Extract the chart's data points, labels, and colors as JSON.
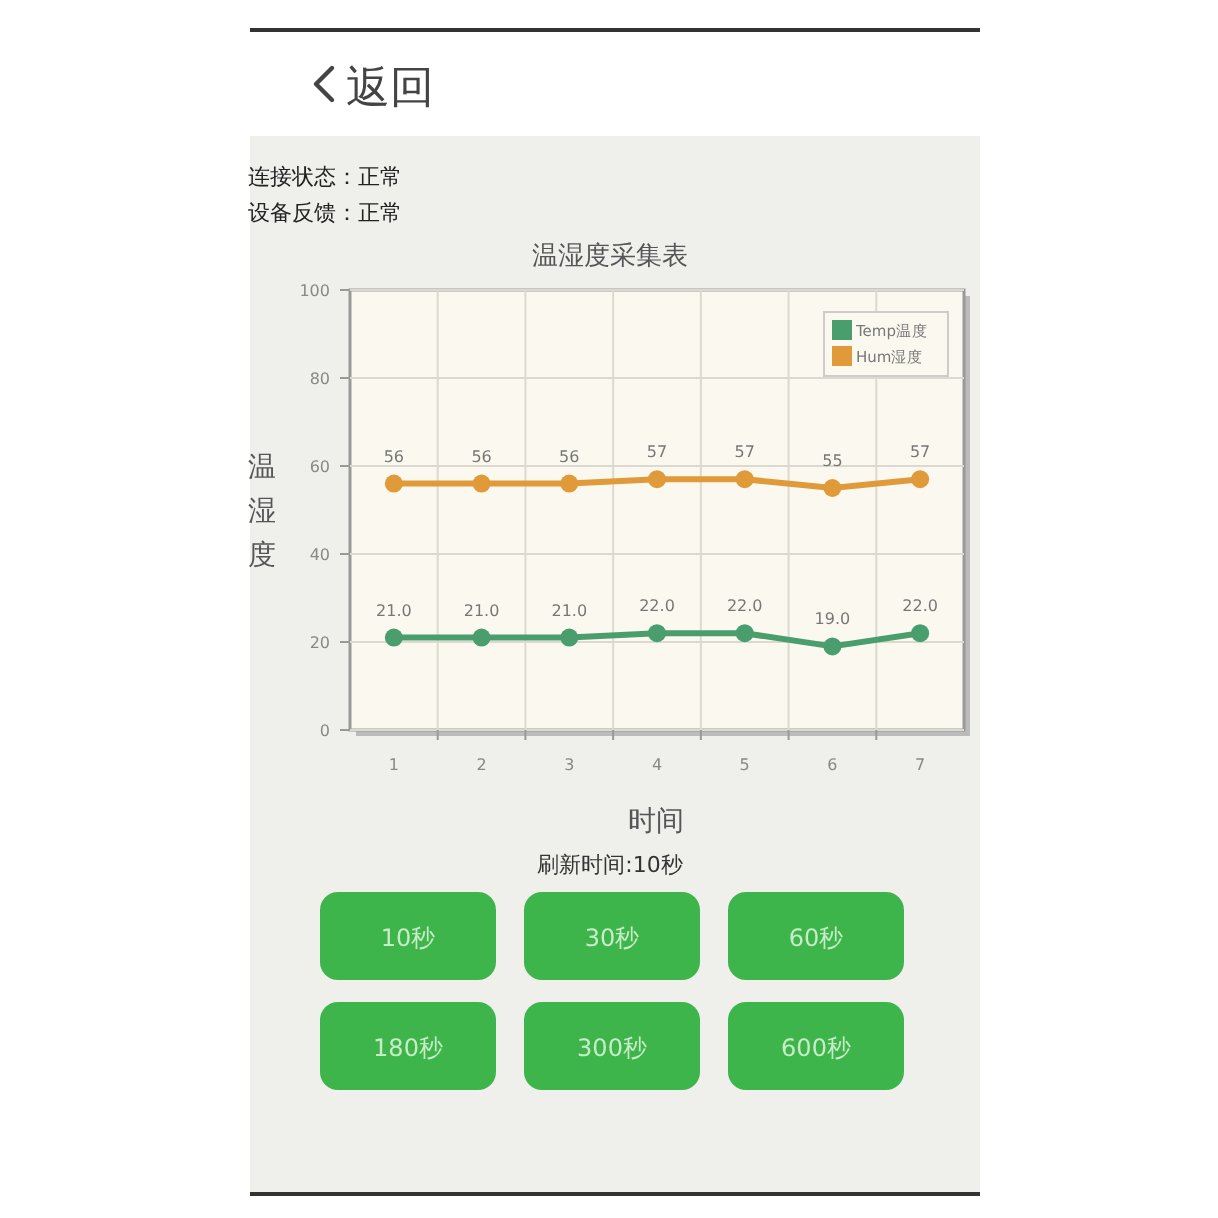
{
  "chart_data": {
    "type": "line",
    "title": "温湿度采集表",
    "xlabel": "时间",
    "ylabel": "温湿度",
    "categories": [
      "1",
      "2",
      "3",
      "4",
      "5",
      "6",
      "7"
    ],
    "series": [
      {
        "name": "Temp温度",
        "color": "#4a9e6e",
        "values": [
          21.0,
          21.0,
          21.0,
          22.0,
          22.0,
          19.0,
          22.0
        ],
        "value_labels": [
          "21.0",
          "21.0",
          "21.0",
          "22.0",
          "22.0",
          "19.0",
          "22.0"
        ]
      },
      {
        "name": "Hum湿度",
        "color": "#e09a3a",
        "values": [
          56,
          56,
          56,
          57,
          57,
          55,
          57
        ],
        "value_labels": [
          "56",
          "56",
          "56",
          "57",
          "57",
          "55",
          "57"
        ]
      }
    ],
    "ylim": [
      0,
      100
    ],
    "yticks": [
      0,
      20,
      40,
      60,
      80,
      100
    ],
    "grid": true,
    "legend": "top right",
    "marker": "circle",
    "annotations": [
      "返回",
      "连接状态：正常",
      "设备反馈：正常",
      "刷新时间:10秒",
      "10秒",
      "30秒",
      "60秒",
      "180秒",
      "300秒",
      "600秒"
    ]
  }
}
